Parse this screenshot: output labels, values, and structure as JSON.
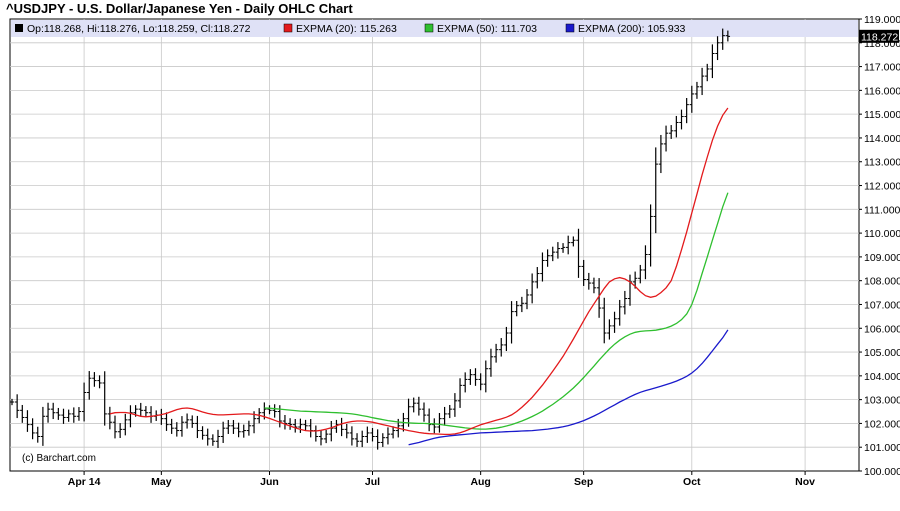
{
  "chart_data": {
    "type": "ohlc",
    "title": "^USDJPY - U.S. Dollar/Japanese Yen - Daily OHLC Chart",
    "ohlc_summary": {
      "open_label": "Op:118.268",
      "high_label": "Hi:118.276",
      "low_label": "Lo:118.259",
      "close_label": "Cl:118.272",
      "last": 118.272,
      "last_label": "118.272"
    },
    "indicators": [
      {
        "name": "EXPMA (20)",
        "value": 115.263,
        "label": "EXPMA (20): 115.263",
        "color": "#e31a1c"
      },
      {
        "name": "EXPMA (50)",
        "value": 111.703,
        "label": "EXPMA (50): 111.703",
        "color": "#2fbf2f"
      },
      {
        "name": "EXPMA (200)",
        "value": 105.933,
        "label": "EXPMA (200): 105.933",
        "color": "#1a1acc"
      }
    ],
    "ylim": [
      100.0,
      119.0
    ],
    "y_ticks": [
      100,
      101,
      102,
      103,
      104,
      105,
      106,
      107,
      108,
      109,
      110,
      111,
      112,
      113,
      114,
      115,
      116,
      117,
      118,
      119
    ],
    "y_tick_labels": [
      "100.000",
      "101.000",
      "102.000",
      "103.000",
      "104.000",
      "105.000",
      "106.000",
      "107.000",
      "108.000",
      "109.000",
      "110.000",
      "111.000",
      "112.000",
      "113.000",
      "114.000",
      "115.000",
      "116.000",
      "117.000",
      "118.000",
      "119.000"
    ],
    "x_month_ticks": [
      {
        "label": "Apr 14",
        "index": 14
      },
      {
        "label": "May",
        "index": 29
      },
      {
        "label": "Jun",
        "index": 50
      },
      {
        "label": "Jul",
        "index": 70
      },
      {
        "label": "Aug",
        "index": 91
      },
      {
        "label": "Sep",
        "index": 111
      },
      {
        "label": "Oct",
        "index": 132
      },
      {
        "label": "Nov",
        "index": 154
      }
    ],
    "closes": [
      102.9,
      102.55,
      102.25,
      101.95,
      101.6,
      101.45,
      102.3,
      102.6,
      102.45,
      102.35,
      102.25,
      102.4,
      102.3,
      102.5,
      103.3,
      103.9,
      103.8,
      103.7,
      102.4,
      102.05,
      101.65,
      101.75,
      102.15,
      102.45,
      102.6,
      102.55,
      102.45,
      102.3,
      102.35,
      102.2,
      101.95,
      101.8,
      101.7,
      102.05,
      102.15,
      102.0,
      101.7,
      101.5,
      101.35,
      101.25,
      101.45,
      101.8,
      101.9,
      101.8,
      101.65,
      101.7,
      101.9,
      102.2,
      102.45,
      102.6,
      102.55,
      102.5,
      102.1,
      102.0,
      101.95,
      101.85,
      101.95,
      101.9,
      101.7,
      101.45,
      101.35,
      101.55,
      101.8,
      101.95,
      101.75,
      101.6,
      101.35,
      101.25,
      101.45,
      101.6,
      101.45,
      101.2,
      101.4,
      101.55,
      101.7,
      101.9,
      102.2,
      102.7,
      102.85,
      102.6,
      102.35,
      101.95,
      101.85,
      102.2,
      102.4,
      102.6,
      102.95,
      103.6,
      103.85,
      104.05,
      103.85,
      103.65,
      104.3,
      104.8,
      105.1,
      105.3,
      105.8,
      106.7,
      106.95,
      107.05,
      107.4,
      107.95,
      108.3,
      108.85,
      109.05,
      109.2,
      109.35,
      109.4,
      109.6,
      109.7,
      108.6,
      108.05,
      107.9,
      107.7,
      106.85,
      105.8,
      106.1,
      106.4,
      106.9,
      107.25,
      107.95,
      108.1,
      108.45,
      109.1,
      110.7,
      112.9,
      113.75,
      114.2,
      114.3,
      114.65,
      114.9,
      115.4,
      115.85,
      116.15,
      116.6,
      116.9,
      117.55,
      118.0,
      118.3,
      118.27
    ],
    "ema20": [
      102.4,
      102.45,
      102.46,
      102.46,
      102.43,
      102.36,
      102.3,
      102.28,
      102.3,
      102.33,
      102.37,
      102.42,
      102.5,
      102.58,
      102.63,
      102.65,
      102.62,
      102.55,
      102.48,
      102.42,
      102.38,
      102.36,
      102.36,
      102.37,
      102.38,
      102.39,
      102.4,
      102.4,
      102.38,
      102.34,
      102.28,
      102.21,
      102.13,
      102.05,
      101.97,
      101.89,
      101.81,
      101.75,
      101.7,
      101.68,
      101.68,
      101.71,
      101.76,
      101.82,
      101.9,
      101.98,
      102.04,
      102.08,
      102.1,
      102.1,
      102.08,
      102.05,
      102.0,
      101.95,
      101.9,
      101.85,
      101.8,
      101.75,
      101.7,
      101.66,
      101.62,
      101.59,
      101.57,
      101.56,
      101.55,
      101.54,
      101.54,
      101.56,
      101.61,
      101.68,
      101.77,
      101.86,
      101.94,
      102.01,
      102.07,
      102.13,
      102.19,
      102.26,
      102.36,
      102.5,
      102.68,
      102.88,
      103.1,
      103.35,
      103.61,
      103.9,
      104.2,
      104.5,
      104.82,
      105.18,
      105.55,
      105.93,
      106.32,
      106.69,
      107.03,
      107.35,
      107.68,
      107.95,
      108.08,
      108.13,
      108.07,
      107.95,
      107.76,
      107.54,
      107.37,
      107.3,
      107.35,
      107.5,
      107.7,
      108.0,
      108.6,
      109.3,
      110.05,
      110.85,
      111.65,
      112.45,
      113.2,
      113.9,
      114.5,
      114.95,
      115.26
    ],
    "ema50": [
      102.65,
      102.64,
      102.62,
      102.6,
      102.58,
      102.56,
      102.54,
      102.52,
      102.51,
      102.5,
      102.49,
      102.48,
      102.47,
      102.46,
      102.45,
      102.44,
      102.42,
      102.4,
      102.37,
      102.33,
      102.29,
      102.24,
      102.2,
      102.16,
      102.12,
      102.09,
      102.06,
      102.04,
      102.02,
      102.01,
      102.0,
      102.0,
      101.99,
      101.98,
      101.96,
      101.93,
      101.9,
      101.87,
      101.84,
      101.81,
      101.79,
      101.77,
      101.76,
      101.76,
      101.78,
      101.8,
      101.84,
      101.89,
      101.95,
      102.02,
      102.1,
      102.19,
      102.29,
      102.4,
      102.52,
      102.66,
      102.8,
      102.96,
      103.12,
      103.3,
      103.49,
      103.7,
      103.93,
      104.17,
      104.41,
      104.66,
      104.9,
      105.13,
      105.33,
      105.5,
      105.64,
      105.75,
      105.83,
      105.87,
      105.89,
      105.9,
      105.92,
      105.96,
      106.01,
      106.09,
      106.2,
      106.36,
      106.6,
      107.0,
      107.6,
      108.3,
      109.0,
      109.7,
      110.4,
      111.1,
      111.7
    ],
    "ema200": [
      101.1,
      101.15,
      101.2,
      101.26,
      101.32,
      101.38,
      101.42,
      101.45,
      101.48,
      101.5,
      101.52,
      101.54,
      101.56,
      101.58,
      101.6,
      101.61,
      101.62,
      101.63,
      101.64,
      101.65,
      101.66,
      101.67,
      101.68,
      101.69,
      101.7,
      101.72,
      101.74,
      101.76,
      101.79,
      101.82,
      101.86,
      101.91,
      101.97,
      102.04,
      102.12,
      102.21,
      102.31,
      102.42,
      102.54,
      102.66,
      102.78,
      102.9,
      103.01,
      103.12,
      103.22,
      103.31,
      103.38,
      103.44,
      103.5,
      103.56,
      103.63,
      103.7,
      103.78,
      103.87,
      103.98,
      104.12,
      104.3,
      104.52,
      104.78,
      105.05,
      105.33,
      105.6,
      105.93
    ],
    "credit": "(c) Barchart.com"
  }
}
